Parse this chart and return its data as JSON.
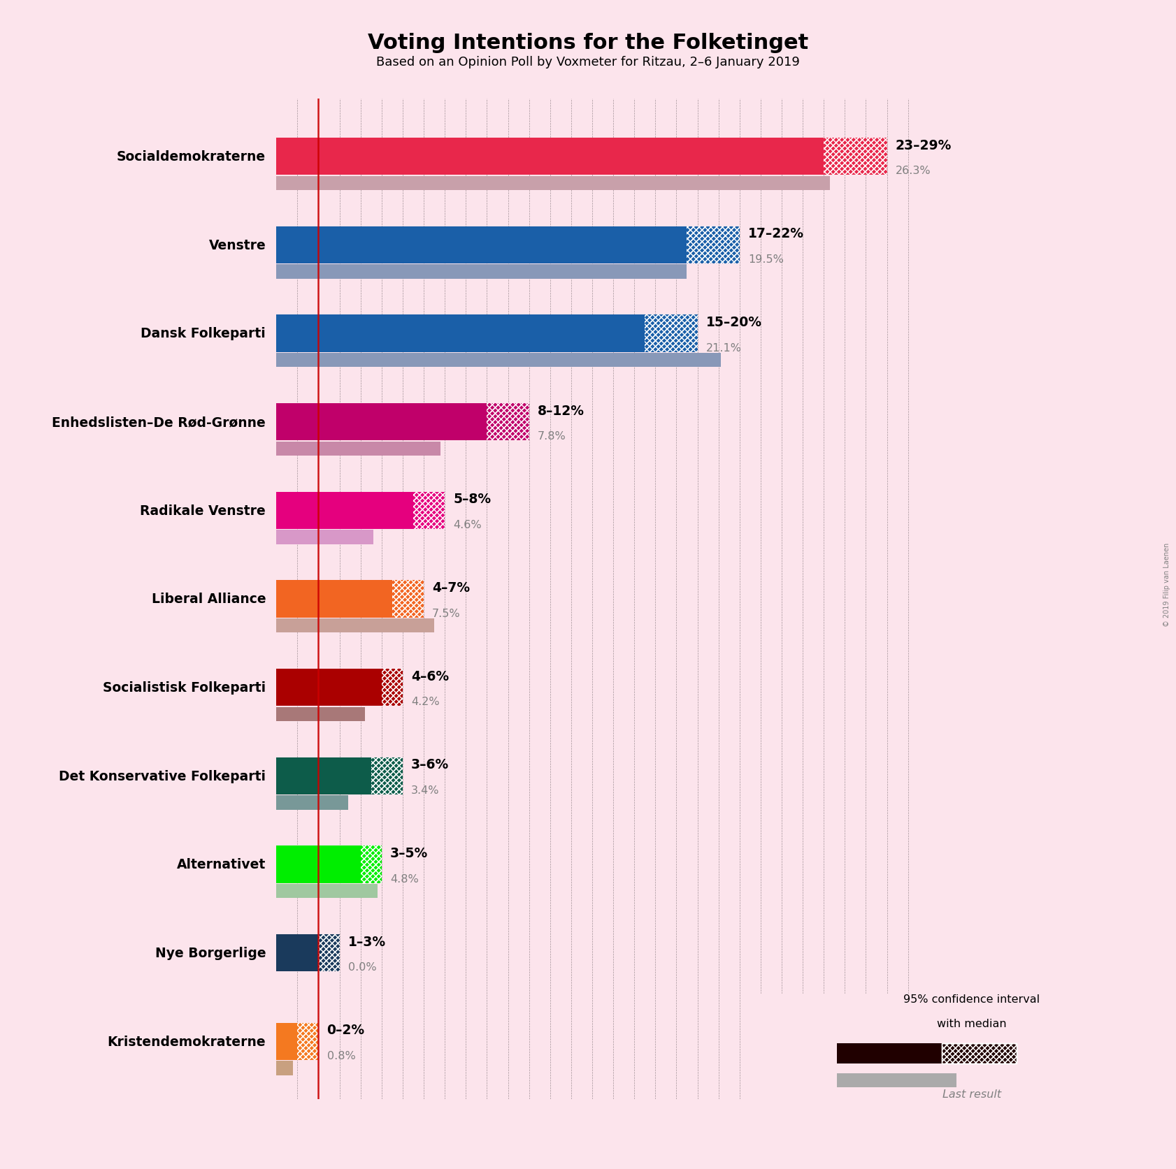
{
  "title": "Voting Intentions for the Folketinget",
  "subtitle": "Based on an Opinion Poll by Voxmeter for Ritzau, 2–6 January 2019",
  "background_color": "#fce4ec",
  "parties": [
    "Socialdemokraterne",
    "Venstre",
    "Dansk Folkeparti",
    "Enhedslisten–De Rød-Grønne",
    "Radikale Venstre",
    "Liberal Alliance",
    "Socialistisk Folkeparti",
    "Det Konservative Folkeparti",
    "Alternativet",
    "Nye Borgerlige",
    "Kristendemokraterne"
  ],
  "ci_low": [
    23,
    17,
    15,
    8,
    5,
    4,
    4,
    3,
    3,
    1,
    0
  ],
  "ci_high": [
    29,
    22,
    20,
    12,
    8,
    7,
    6,
    6,
    5,
    3,
    2
  ],
  "median": [
    26,
    19.5,
    17.5,
    10,
    6.5,
    5.5,
    5,
    4.5,
    4,
    2,
    1
  ],
  "last_result": [
    26.3,
    19.5,
    21.1,
    7.8,
    4.6,
    7.5,
    4.2,
    3.4,
    4.8,
    0.0,
    0.8
  ],
  "range_labels": [
    "23–29%",
    "17–22%",
    "15–20%",
    "8–12%",
    "5–8%",
    "4–7%",
    "4–6%",
    "3–6%",
    "3–5%",
    "1–3%",
    "0–2%"
  ],
  "last_labels": [
    "26.3%",
    "19.5%",
    "21.1%",
    "7.8%",
    "4.6%",
    "7.5%",
    "4.2%",
    "3.4%",
    "4.8%",
    "0.0%",
    "0.8%"
  ],
  "bar_colors": [
    "#e8274b",
    "#1a5fa8",
    "#1a5fa8",
    "#c0006a",
    "#e5007e",
    "#f26522",
    "#aa0000",
    "#0d5c4a",
    "#00ee00",
    "#1a3a5c",
    "#f47920"
  ],
  "last_colors": [
    "#c8a0aa",
    "#8898b8",
    "#8898b8",
    "#c888a8",
    "#d898c8",
    "#c8a098",
    "#a87878",
    "#789898",
    "#a0c8a0",
    "#788898",
    "#c8a080"
  ],
  "threshold_line": 2.0,
  "xlim_max": 31,
  "copyright": "© 2019 Filip van Laenen"
}
